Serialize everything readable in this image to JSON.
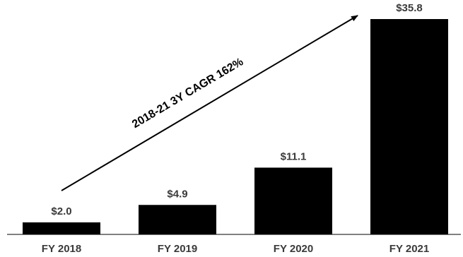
{
  "chart_data": {
    "type": "bar",
    "title": "",
    "xlabel": "",
    "ylabel": "",
    "categories": [
      "FY 2018",
      "FY 2019",
      "FY 2020",
      "FY 2021"
    ],
    "values": [
      2.0,
      4.9,
      11.1,
      35.8
    ],
    "value_labels": [
      "$2.0",
      "$4.9",
      "$11.1",
      "$35.8"
    ],
    "ylim": [
      0,
      35.8
    ],
    "grid": false,
    "bar_color": "#000000",
    "annotation": {
      "text": "2018-21 3Y CAGR 162%",
      "style": "diagonal arrow from first bar to last bar"
    }
  }
}
